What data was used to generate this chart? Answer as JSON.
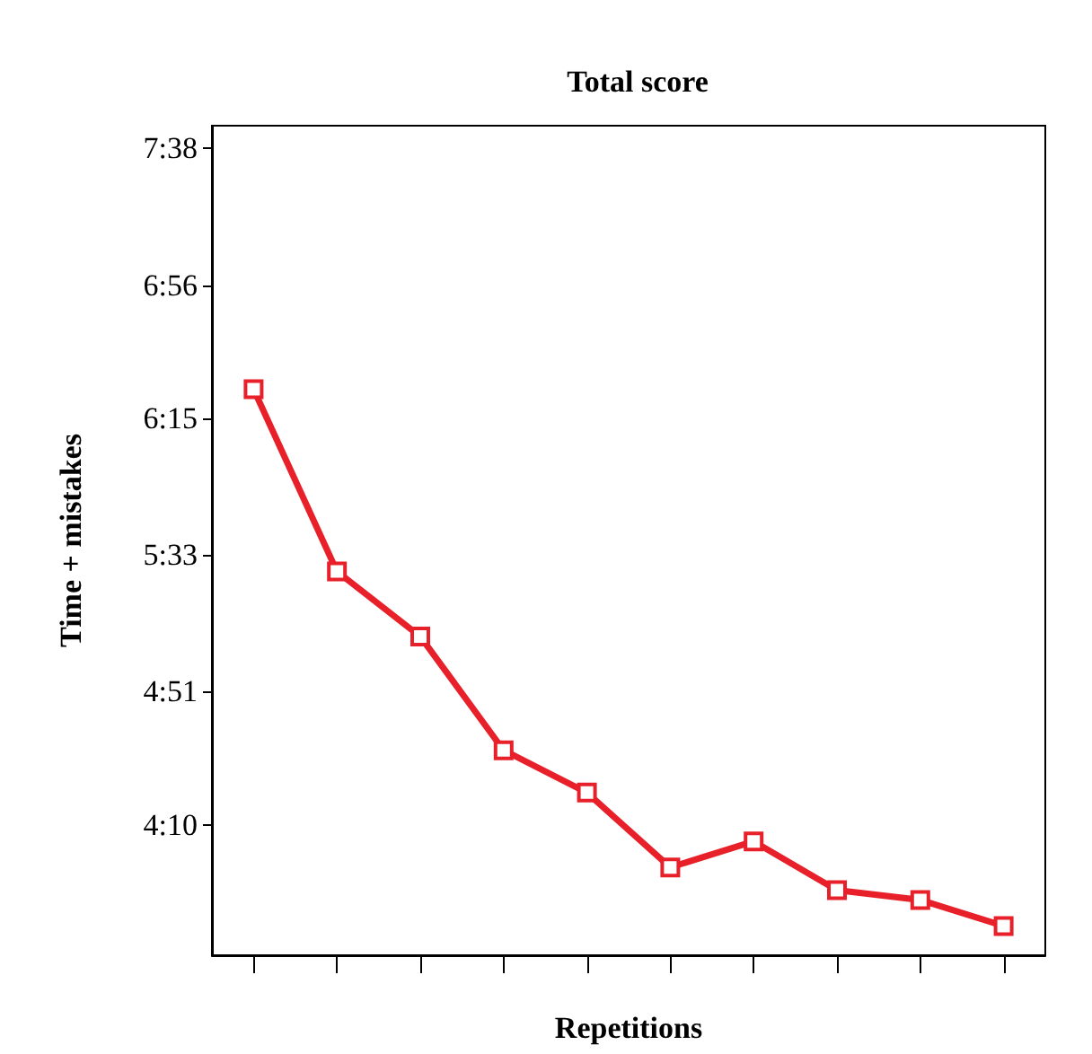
{
  "chart_data": {
    "type": "line",
    "title": "Total score",
    "xlabel": "Repetitions",
    "ylabel": "Time + mistakes",
    "categories": [
      null,
      null,
      null,
      null,
      null,
      null,
      null,
      null,
      null,
      null
    ],
    "series": [
      {
        "color": "#e8202a",
        "values": [
          384,
          328,
          308,
          273,
          260,
          237,
          245,
          230,
          227,
          219
        ]
      }
    ],
    "ylim": [
      210,
      465
    ],
    "yticks": [
      {
        "value": 250,
        "label": "4:10"
      },
      {
        "value": 291,
        "label": "4:51"
      },
      {
        "value": 333,
        "label": "5:33"
      },
      {
        "value": 375,
        "label": "6:15"
      },
      {
        "value": 416,
        "label": "6:56"
      },
      {
        "value": 458,
        "label": "7:38"
      }
    ],
    "tick_labels": "y",
    "marker": "square",
    "line_style": "solid"
  }
}
